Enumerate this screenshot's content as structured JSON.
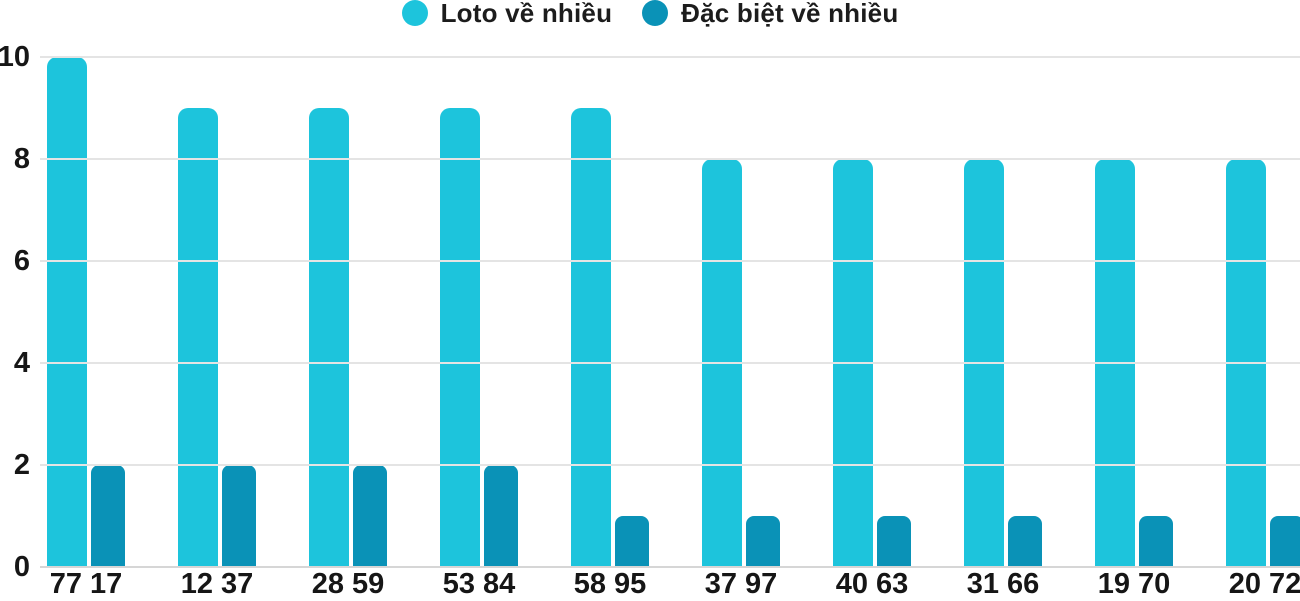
{
  "legend": {
    "items": [
      {
        "label": "Loto về nhiều",
        "color": "#1dc4dc"
      },
      {
        "label": "Đặc biệt về nhiều",
        "color": "#0a92b7"
      }
    ]
  },
  "chart_data": {
    "type": "bar",
    "title": "",
    "xlabel": "",
    "ylabel": "",
    "categories": [
      "77 17",
      "12 37",
      "28 59",
      "53 84",
      "58 95",
      "37 97",
      "40 63",
      "31 66",
      "19 70",
      "20 72"
    ],
    "series": [
      {
        "name": "Loto về nhiều",
        "color": "#1dc4dc",
        "values": [
          10,
          9,
          9,
          9,
          9,
          8,
          8,
          8,
          8,
          8
        ]
      },
      {
        "name": "Đặc biệt về nhiều",
        "color": "#0a92b7",
        "values": [
          2,
          2,
          2,
          2,
          1,
          1,
          1,
          1,
          1,
          1
        ]
      }
    ],
    "ylim": [
      0,
      10
    ],
    "yticks": [
      0,
      2,
      4,
      6,
      8,
      10
    ],
    "grid": true,
    "legend_position": "top-center",
    "colors": {
      "gridline": "#e4e4e4",
      "baseline": "#d6d6d6",
      "text": "#161616"
    }
  }
}
